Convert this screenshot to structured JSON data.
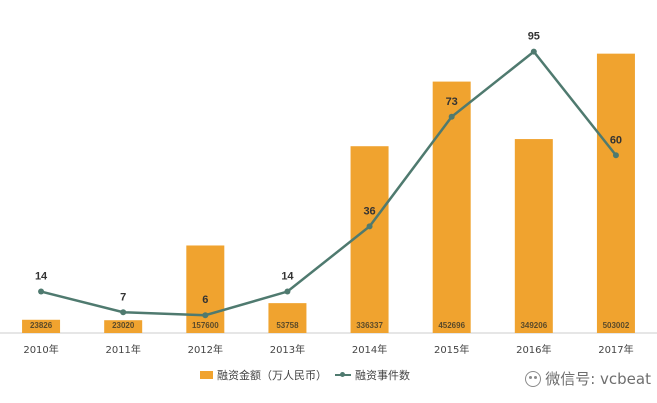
{
  "chart_data": {
    "type": "bar",
    "categories": [
      "2010年",
      "2011年",
      "2012年",
      "2013年",
      "2014年",
      "2015年",
      "2016年",
      "2017年"
    ],
    "series": [
      {
        "name": "融资金额（万人民币）",
        "kind": "bar",
        "color": "#F0A32F",
        "values": [
          23826,
          23020,
          157600,
          53758,
          336337,
          452696,
          349206,
          503002
        ],
        "labels": [
          "23826",
          "23020",
          "157600",
          "53758",
          "336337",
          "452696",
          "349206",
          "503002"
        ]
      },
      {
        "name": "融资事件数",
        "kind": "line",
        "color": "#4F7A6F",
        "values": [
          14,
          7,
          6,
          14,
          36,
          73,
          95,
          60
        ],
        "labels": [
          "14",
          "7",
          "6",
          "14",
          "36",
          "73",
          "95",
          "60"
        ]
      }
    ],
    "bar_ylim": [
      0,
      560000
    ],
    "line_ylim": [
      0,
      105
    ],
    "grid": false,
    "legend": "bottom"
  },
  "watermark": {
    "text": "微信号: vcbeat",
    "icon": "wechat-icon"
  }
}
